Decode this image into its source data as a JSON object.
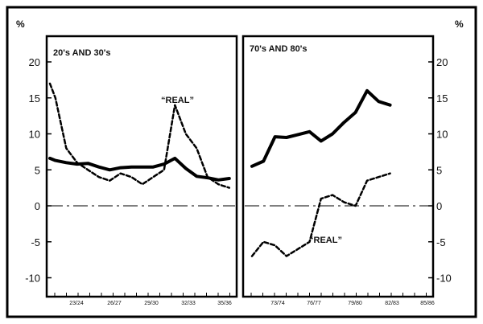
{
  "axis_unit": "%",
  "chart_data": [
    {
      "type": "line",
      "title": "20's AND 30's",
      "ylabel": "%",
      "ylim": [
        -12,
        22
      ],
      "y_ticks": [
        -10,
        -5,
        0,
        5,
        10,
        15,
        20
      ],
      "x_ticks": [
        "23/24",
        "26/27",
        "29/30",
        "32/33",
        "35/36"
      ],
      "zero_line": true,
      "series": [
        {
          "style": "solid",
          "x": [
            1920.5,
            1921,
            1922,
            1923,
            1924,
            1925,
            1926,
            1927,
            1928,
            1929,
            1930,
            1931,
            1932,
            1933,
            1934,
            1935,
            1936,
            1937
          ],
          "y": [
            6.6,
            6.3,
            6.0,
            5.8,
            5.9,
            5.4,
            5.0,
            5.3,
            5.4,
            5.4,
            5.4,
            5.8,
            6.6,
            5.2,
            4.1,
            3.9,
            3.6,
            3.8
          ]
        },
        {
          "name": "REAL",
          "style": "dashed",
          "x": [
            1920.5,
            1921,
            1922,
            1923,
            1924,
            1925,
            1926,
            1927,
            1928,
            1929,
            1930,
            1931,
            1932,
            1933,
            1934,
            1935,
            1936,
            1937
          ],
          "y": [
            17,
            15,
            8,
            6,
            5,
            4,
            3.5,
            4.5,
            4,
            3,
            4,
            5,
            14,
            10,
            8,
            4,
            3,
            2.5
          ]
        }
      ]
    },
    {
      "type": "line",
      "title": "70's AND 80's",
      "ylabel": "%",
      "ylim": [
        -12,
        22
      ],
      "y_ticks": [
        -10,
        -5,
        0,
        5,
        10,
        15,
        20
      ],
      "x_ticks": [
        "73/74",
        "76/77",
        "79/80",
        "82/83",
        "85/86"
      ],
      "zero_line": true,
      "series": [
        {
          "style": "solid",
          "x": [
            1971,
            1972,
            1973,
            1974,
            1975,
            1976,
            1977,
            1978,
            1979,
            1980,
            1981,
            1982,
            1983
          ],
          "y": [
            5.5,
            6.2,
            9.6,
            9.5,
            9.9,
            10.3,
            9.0,
            10.0,
            11.6,
            13.0,
            16.0,
            14.5,
            14.0
          ]
        },
        {
          "name": "REAL",
          "style": "dashed",
          "x": [
            1971,
            1972,
            1973,
            1974,
            1975,
            1976,
            1977,
            1978,
            1979,
            1980,
            1981,
            1982,
            1983
          ],
          "y": [
            -7.0,
            -5.0,
            -5.5,
            -7.0,
            -6.0,
            -5.0,
            1.0,
            1.5,
            0.5,
            0.0,
            3.5,
            4.0,
            4.5
          ]
        }
      ]
    }
  ],
  "annotations": [
    "“REAL”",
    "“REAL”"
  ]
}
